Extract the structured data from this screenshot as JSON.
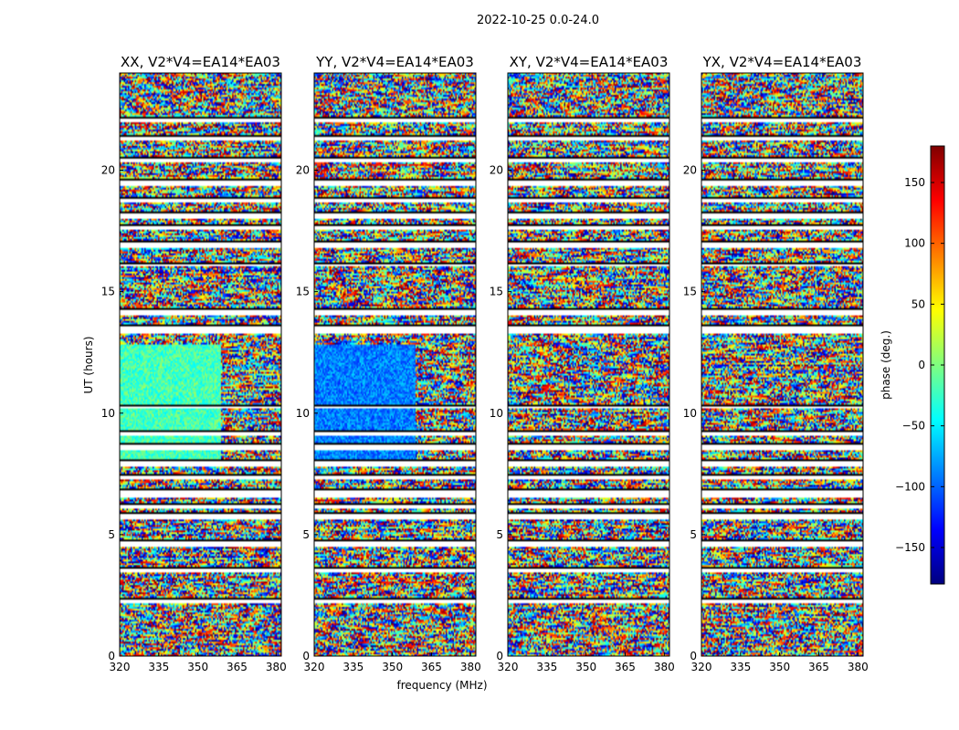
{
  "chart_data": {
    "type": "heatmap",
    "suptitle": "2022-10-25 0.0-24.0",
    "xlabel": "frequency (MHz)",
    "ylabel": "UT (hours)",
    "xlim": [
      320,
      382
    ],
    "ylim": [
      0,
      24
    ],
    "xticks": [
      320,
      335,
      350,
      365,
      380
    ],
    "yticks": [
      0,
      5,
      10,
      15,
      20
    ],
    "flagged_hours": [
      [
        2.15,
        2.3
      ],
      [
        3.45,
        3.6
      ],
      [
        4.5,
        4.7
      ],
      [
        5.65,
        5.85
      ],
      [
        6.05,
        6.25
      ],
      [
        6.55,
        6.85
      ],
      [
        7.25,
        7.4
      ],
      [
        7.8,
        8.05
      ],
      [
        8.5,
        8.7
      ],
      [
        9.05,
        9.25
      ],
      [
        10.2,
        10.3
      ],
      [
        13.3,
        13.6
      ],
      [
        14.05,
        14.25
      ],
      [
        16.05,
        16.15
      ],
      [
        16.8,
        17.0
      ],
      [
        17.55,
        17.7
      ],
      [
        18.0,
        18.2
      ],
      [
        18.65,
        18.85
      ],
      [
        19.35,
        19.55
      ],
      [
        20.3,
        20.45
      ],
      [
        21.25,
        21.4
      ],
      [
        21.95,
        22.1
      ]
    ],
    "panels": [
      {
        "title": "XX, V2*V4=EA14*EA03",
        "coherent_hours": [
          [
            8.0,
            12.8
          ]
        ],
        "coherent_phase_deg": -20
      },
      {
        "title": "YY, V2*V4=EA14*EA03",
        "coherent_hours": [
          [
            8.0,
            12.8
          ]
        ],
        "coherent_phase_deg": -90
      },
      {
        "title": "XY, V2*V4=EA14*EA03",
        "coherent_hours": [],
        "coherent_phase_deg": 0
      },
      {
        "title": "YX, V2*V4=EA14*EA03",
        "coherent_hours": [],
        "coherent_phase_deg": 0
      }
    ],
    "colorbar": {
      "label": "phase (deg.)",
      "range": [
        -180,
        180
      ],
      "ticks": [
        -150,
        -100,
        -50,
        0,
        50,
        100,
        150
      ],
      "tick_labels": [
        "−150",
        "−100",
        "−50",
        "0",
        "50",
        "100",
        "150"
      ],
      "colormap": [
        "#00007f",
        "#0000ff",
        "#007fff",
        "#00ffff",
        "#7fff7f",
        "#ffff00",
        "#ff7f00",
        "#ff0000",
        "#7f0000"
      ]
    }
  }
}
